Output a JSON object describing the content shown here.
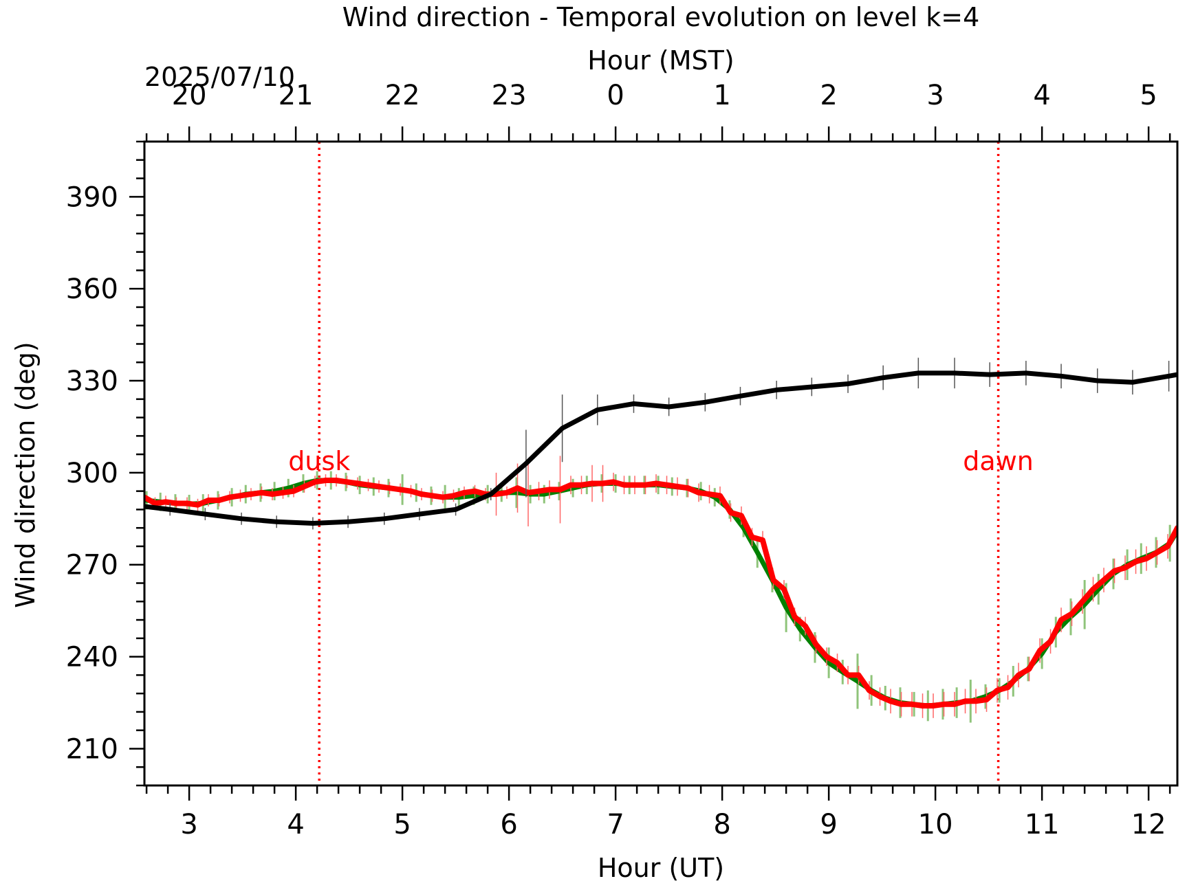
{
  "chart_data": {
    "type": "line",
    "title": "Wind direction - Temporal evolution on level k=4",
    "xlabel": "Hour (UT)",
    "ylabel": "Wind direction (deg)",
    "top_axis_label": "Hour (MST)",
    "top_axis_date": "2025/07/10",
    "xlim": [
      2.58,
      12.27
    ],
    "ylim": [
      198,
      408
    ],
    "x_ticks": [
      3,
      4,
      5,
      6,
      7,
      8,
      9,
      10,
      11,
      12
    ],
    "x_tick_labels": [
      "3",
      "4",
      "5",
      "6",
      "7",
      "8",
      "9",
      "10",
      "11",
      "12"
    ],
    "y_ticks": [
      210,
      240,
      270,
      300,
      330,
      360,
      390
    ],
    "y_tick_labels": [
      "210",
      "240",
      "270",
      "300",
      "330",
      "360",
      "390"
    ],
    "top_ticks_ut": [
      3,
      4,
      5,
      6,
      7,
      8,
      9,
      10,
      11,
      12
    ],
    "top_tick_labels": [
      "20",
      "21",
      "22",
      "23",
      "0",
      "1",
      "2",
      "3",
      "4",
      "5"
    ],
    "grid": false,
    "events": [
      {
        "label": "dusk",
        "x": 4.22,
        "color": "#ff0000"
      },
      {
        "label": "dawn",
        "x": 10.59,
        "color": "#ff0000"
      }
    ],
    "series": [
      {
        "color": "#008000",
        "errorbar_color": "#8fc47a",
        "x": [
          2.6,
          2.73,
          2.87,
          3.0,
          3.13,
          3.27,
          3.4,
          3.53,
          3.67,
          3.8,
          3.93,
          4.07,
          4.2,
          4.33,
          4.47,
          4.6,
          4.73,
          4.87,
          5.0,
          5.13,
          5.27,
          5.4,
          5.53,
          5.67,
          5.8,
          5.93,
          6.07,
          6.2,
          6.33,
          6.47,
          6.6,
          6.73,
          6.87,
          7.0,
          7.13,
          7.27,
          7.4,
          7.53,
          7.67,
          7.8,
          7.93,
          8.07,
          8.2,
          8.33,
          8.47,
          8.6,
          8.73,
          8.87,
          9.0,
          9.13,
          9.27,
          9.4,
          9.53,
          9.67,
          9.8,
          9.93,
          10.07,
          10.2,
          10.33,
          10.47,
          10.6,
          10.73,
          10.87,
          11.0,
          11.13,
          11.27,
          11.4,
          11.53,
          11.67,
          11.8,
          11.93,
          12.07,
          12.2,
          12.27
        ],
        "values": [
          291,
          290.5,
          290,
          289.8,
          290,
          291,
          292,
          293,
          293.5,
          294,
          295,
          296.5,
          297.5,
          297.5,
          297,
          296,
          295.5,
          295,
          294.5,
          293.5,
          292.5,
          292,
          292,
          292.5,
          293,
          293.5,
          293.5,
          293,
          293,
          294,
          295,
          296,
          296.5,
          296.5,
          296,
          296,
          296,
          295.5,
          295,
          294,
          292,
          288,
          282,
          274,
          265,
          256,
          249,
          243,
          238,
          235,
          232,
          229,
          226.5,
          225,
          224.5,
          224,
          224.5,
          225,
          225.5,
          227,
          229,
          232,
          236,
          241,
          248,
          253,
          257,
          262,
          267,
          270,
          272,
          274,
          277,
          281
        ],
        "errors": [
          3,
          3,
          3,
          3,
          3,
          3,
          3,
          3,
          3,
          3,
          3,
          3,
          3,
          3,
          3,
          3,
          3,
          3,
          5,
          3,
          3,
          4,
          3,
          3,
          3,
          3,
          5,
          3,
          3,
          3,
          3,
          3,
          3,
          3,
          3,
          3,
          3,
          3,
          3,
          3,
          3,
          3,
          3,
          5,
          4,
          8,
          4,
          5,
          5,
          4,
          9,
          5,
          4,
          5,
          4,
          5,
          5,
          5,
          7,
          4,
          4,
          5,
          4,
          5,
          5,
          6,
          8,
          5,
          5,
          5,
          5,
          5,
          6,
          5
        ]
      },
      {
        "color": "#ff0000",
        "errorbar_color": "#ff6666",
        "x": [
          2.58,
          2.68,
          2.78,
          2.88,
          2.98,
          3.08,
          3.18,
          3.28,
          3.38,
          3.48,
          3.58,
          3.68,
          3.78,
          3.88,
          3.98,
          4.08,
          4.18,
          4.28,
          4.38,
          4.48,
          4.58,
          4.68,
          4.78,
          4.88,
          4.98,
          5.08,
          5.18,
          5.28,
          5.38,
          5.48,
          5.58,
          5.68,
          5.78,
          5.88,
          5.98,
          6.08,
          6.18,
          6.28,
          6.38,
          6.48,
          6.58,
          6.68,
          6.78,
          6.88,
          6.98,
          7.08,
          7.18,
          7.28,
          7.38,
          7.48,
          7.58,
          7.68,
          7.78,
          7.88,
          7.98,
          8.08,
          8.18,
          8.28,
          8.38,
          8.48,
          8.58,
          8.68,
          8.78,
          8.88,
          8.98,
          9.08,
          9.18,
          9.28,
          9.38,
          9.48,
          9.58,
          9.68,
          9.78,
          9.88,
          9.98,
          10.08,
          10.18,
          10.28,
          10.38,
          10.48,
          10.58,
          10.68,
          10.78,
          10.88,
          10.98,
          11.08,
          11.18,
          11.28,
          11.38,
          11.48,
          11.58,
          11.68,
          11.78,
          11.88,
          11.98,
          12.08,
          12.18,
          12.27
        ],
        "values": [
          292,
          290,
          290.5,
          290,
          290,
          289.5,
          291,
          291,
          292,
          292.5,
          293,
          293.5,
          293,
          293.5,
          294,
          295.5,
          297,
          297.5,
          297.5,
          297,
          296.5,
          296,
          295.5,
          295,
          294.5,
          294,
          293,
          292.5,
          292,
          292.5,
          293.5,
          294,
          293,
          293,
          293.5,
          295,
          293.5,
          294,
          294.5,
          294.5,
          296,
          296,
          296.5,
          296.5,
          297,
          296,
          296,
          296,
          296.5,
          296,
          295.5,
          295,
          293.5,
          293,
          292.5,
          287,
          286,
          279,
          278,
          265,
          262,
          253,
          250,
          244,
          240,
          238,
          234,
          234,
          229,
          227,
          225.5,
          224.5,
          224.5,
          224,
          224,
          224.5,
          224.5,
          225.5,
          225.5,
          226,
          229,
          230,
          234,
          236,
          242,
          245,
          252,
          254,
          258,
          262,
          265,
          268,
          269,
          271,
          272,
          274,
          276,
          282
        ],
        "errors": [
          2,
          2,
          2,
          2,
          2,
          2,
          2,
          2,
          2,
          2,
          2,
          2,
          2,
          2,
          2,
          2,
          2,
          2,
          2,
          2,
          2,
          2,
          2,
          2,
          2,
          2,
          2,
          2,
          2,
          2,
          2,
          2,
          2,
          7,
          2,
          8,
          11,
          3,
          3,
          11,
          3,
          3,
          6,
          6,
          3,
          3,
          3,
          3,
          3,
          3,
          3,
          3,
          3,
          3,
          3,
          3,
          3,
          3,
          3,
          3,
          3,
          3,
          3,
          3,
          3,
          3,
          3,
          3,
          3,
          3,
          4,
          4,
          4,
          4,
          4,
          4,
          4,
          4,
          4,
          4,
          4,
          4,
          4,
          4,
          4,
          4,
          4,
          4,
          4,
          4,
          4,
          4,
          4,
          4,
          4,
          4,
          4,
          3
        ]
      },
      {
        "color": "#000000",
        "errorbar_color": "#555555",
        "x": [
          2.58,
          2.82,
          3.15,
          3.49,
          3.82,
          4.16,
          4.49,
          4.83,
          5.16,
          5.5,
          5.83,
          6.16,
          6.5,
          6.83,
          7.17,
          7.5,
          7.84,
          8.17,
          8.51,
          8.84,
          9.18,
          9.51,
          9.84,
          10.18,
          10.51,
          10.85,
          11.18,
          11.52,
          11.85,
          12.19,
          12.27
        ],
        "values": [
          289,
          288,
          286.5,
          285,
          284,
          283.5,
          284,
          285,
          286.5,
          288,
          293,
          303,
          314.5,
          320.5,
          322.5,
          321.5,
          323,
          325,
          327,
          328,
          329,
          331,
          332.5,
          332.5,
          332,
          332.5,
          331.5,
          330,
          329.5,
          331.5,
          332
        ],
        "errors": [
          2,
          2,
          2,
          2,
          2,
          2,
          2,
          2,
          2,
          2,
          2,
          11,
          11,
          5,
          3,
          3,
          3,
          3,
          3,
          3,
          3,
          4,
          5,
          5,
          4,
          4,
          4,
          4,
          4,
          5,
          5
        ]
      }
    ]
  }
}
